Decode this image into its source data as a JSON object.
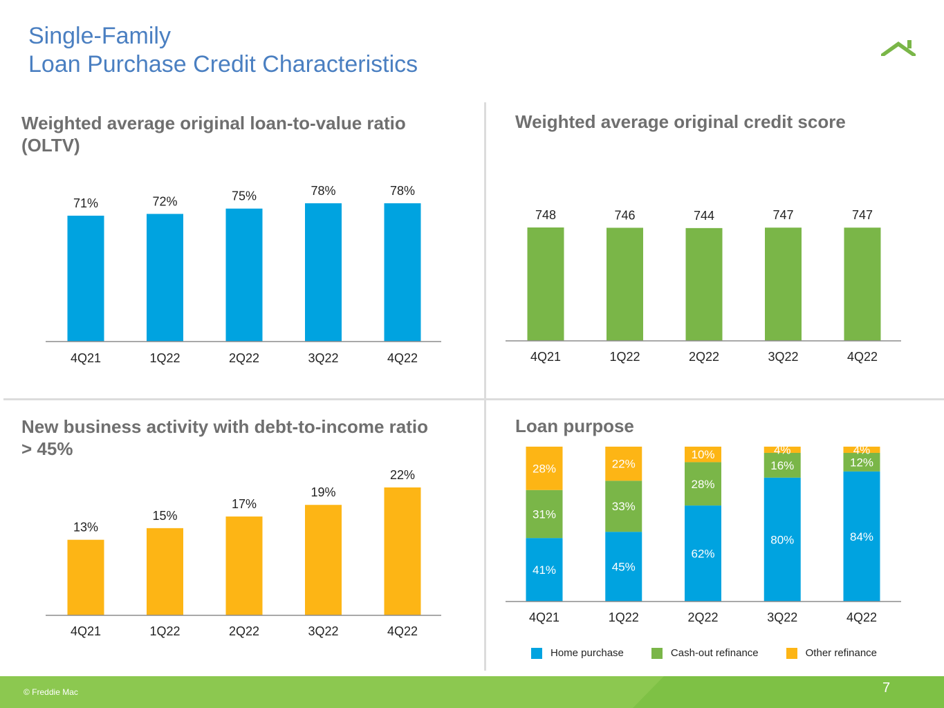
{
  "page": {
    "title_line1": "Single-Family",
    "title_line2": "Loan Purchase Credit Characteristics",
    "copyright": "© Freddie Mac",
    "page_number": "7"
  },
  "colors": {
    "oltv": "#00a3e0",
    "credit": "#7ab648",
    "dti": "#fdb515",
    "home_purchase": "#00a3e0",
    "cash_out": "#7ab648",
    "other_refi": "#fdb515"
  },
  "sections": {
    "oltv_title": "Weighted average original loan-to-value ratio (OLTV)",
    "credit_title": "Weighted average original credit score",
    "dti_title": "New business activity with debt-to-income ratio > 45%",
    "purpose_title": "Loan purpose"
  },
  "chart_data": [
    {
      "id": "oltv",
      "type": "bar",
      "title": "Weighted average original loan-to-value ratio (OLTV)",
      "categories": [
        "4Q21",
        "1Q22",
        "2Q22",
        "3Q22",
        "4Q22"
      ],
      "values": [
        71,
        72,
        75,
        78,
        78
      ],
      "labels": [
        "71%",
        "72%",
        "75%",
        "78%",
        "78%"
      ],
      "ylim": [
        0,
        78
      ]
    },
    {
      "id": "credit",
      "type": "bar",
      "title": "Weighted average original credit score",
      "categories": [
        "4Q21",
        "1Q22",
        "2Q22",
        "3Q22",
        "4Q22"
      ],
      "values": [
        748,
        746,
        744,
        747,
        747
      ],
      "labels": [
        "748",
        "746",
        "744",
        "747",
        "747"
      ],
      "ylim": [
        0,
        748
      ]
    },
    {
      "id": "dti",
      "type": "bar",
      "title": "New business activity with debt-to-income ratio > 45%",
      "categories": [
        "4Q21",
        "1Q22",
        "2Q22",
        "3Q22",
        "4Q22"
      ],
      "values": [
        13,
        15,
        17,
        19,
        22
      ],
      "labels": [
        "13%",
        "15%",
        "17%",
        "19%",
        "22%"
      ],
      "ylim": [
        0,
        22
      ]
    },
    {
      "id": "purpose",
      "type": "bar",
      "stacked": true,
      "title": "Loan purpose",
      "categories": [
        "4Q21",
        "1Q22",
        "2Q22",
        "3Q22",
        "4Q22"
      ],
      "series": [
        {
          "name": "Home purchase",
          "values": [
            41,
            45,
            62,
            80,
            84
          ],
          "labels": [
            "41%",
            "45%",
            "62%",
            "80%",
            "84%"
          ]
        },
        {
          "name": "Cash-out refinance",
          "values": [
            31,
            33,
            28,
            16,
            12
          ],
          "labels": [
            "31%",
            "33%",
            "28%",
            "16%",
            "12%"
          ]
        },
        {
          "name": "Other refinance",
          "values": [
            28,
            22,
            10,
            4,
            4
          ],
          "labels": [
            "28%",
            "22%",
            "10%",
            "4%",
            "4%"
          ]
        }
      ],
      "ylim": [
        0,
        100
      ],
      "legend": "bottom"
    }
  ]
}
